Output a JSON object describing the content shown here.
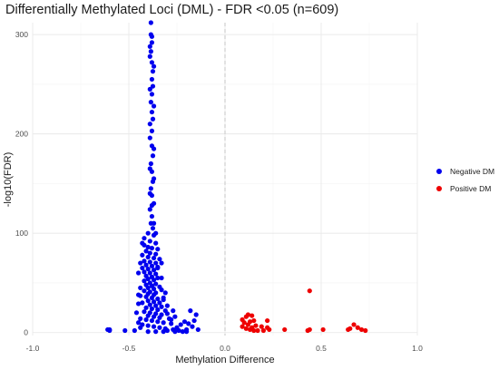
{
  "chart_data": {
    "type": "scatter",
    "title": "Differentially Methylated Loci (DML) - FDR <0.05 (n=609)",
    "xlabel": "Methylation Difference",
    "ylabel": "-log10(FDR)",
    "xlim": [
      -1.0,
      1.0
    ],
    "ylim": [
      -3,
      312
    ],
    "x_ticks": [
      -1.0,
      -0.5,
      0.0,
      0.5,
      1.0
    ],
    "x_tick_labels": [
      "-1.0",
      "-0.5",
      "0.0",
      "0.5",
      "1.0"
    ],
    "y_ticks": [
      0,
      100,
      200,
      300
    ],
    "y_tick_labels": [
      "0",
      "100",
      "200",
      "300"
    ],
    "grid": true,
    "reference_line": {
      "x": 0,
      "style": "dashed",
      "color": "#cfcfcf"
    },
    "legend_position": "right",
    "series": [
      {
        "name": "Negative DM",
        "color": "#0000ee",
        "points": [
          [
            -0.385,
            312
          ],
          [
            -0.385,
            300
          ],
          [
            -0.38,
            298
          ],
          [
            -0.39,
            288
          ],
          [
            -0.385,
            283
          ],
          [
            -0.38,
            272
          ],
          [
            -0.375,
            263
          ],
          [
            -0.38,
            255
          ],
          [
            -0.375,
            248
          ],
          [
            -0.38,
            240
          ],
          [
            -0.385,
            232
          ],
          [
            -0.38,
            222
          ],
          [
            -0.375,
            215
          ],
          [
            -0.38,
            203
          ],
          [
            -0.39,
            196
          ],
          [
            -0.38,
            188
          ],
          [
            -0.375,
            178
          ],
          [
            -0.385,
            170
          ],
          [
            -0.38,
            162
          ],
          [
            -0.375,
            152
          ],
          [
            -0.385,
            145
          ],
          [
            -0.38,
            138
          ],
          [
            -0.37,
            130
          ],
          [
            -0.39,
            124
          ],
          [
            -0.38,
            117
          ],
          [
            -0.385,
            110
          ],
          [
            -0.375,
            105
          ],
          [
            -0.4,
            100
          ],
          [
            -0.37,
            98
          ],
          [
            -0.42,
            95
          ],
          [
            -0.39,
            92
          ],
          [
            -0.36,
            90
          ],
          [
            -0.42,
            88
          ],
          [
            -0.4,
            86
          ],
          [
            -0.38,
            85
          ],
          [
            -0.35,
            84
          ],
          [
            -0.41,
            82
          ],
          [
            -0.39,
            80
          ],
          [
            -0.36,
            79
          ],
          [
            -0.43,
            78
          ],
          [
            -0.4,
            76
          ],
          [
            -0.37,
            75
          ],
          [
            -0.34,
            74
          ],
          [
            -0.42,
            72
          ],
          [
            -0.39,
            71
          ],
          [
            -0.36,
            70
          ],
          [
            -0.41,
            68
          ],
          [
            -0.38,
            67
          ],
          [
            -0.35,
            66
          ],
          [
            -0.43,
            65
          ],
          [
            -0.4,
            64
          ],
          [
            -0.37,
            63
          ],
          [
            -0.42,
            61
          ],
          [
            -0.39,
            60
          ],
          [
            -0.36,
            59
          ],
          [
            -0.41,
            57
          ],
          [
            -0.38,
            56
          ],
          [
            -0.35,
            55
          ],
          [
            -0.4,
            54
          ],
          [
            -0.37,
            53
          ],
          [
            -0.42,
            52
          ],
          [
            -0.39,
            50
          ],
          [
            -0.36,
            49
          ],
          [
            -0.41,
            48
          ],
          [
            -0.38,
            47
          ],
          [
            -0.34,
            46
          ],
          [
            -0.4,
            45
          ],
          [
            -0.37,
            44
          ],
          [
            -0.33,
            43
          ],
          [
            -0.42,
            42
          ],
          [
            -0.39,
            41
          ],
          [
            -0.36,
            40
          ],
          [
            -0.4,
            39
          ],
          [
            -0.37,
            38
          ],
          [
            -0.44,
            37
          ],
          [
            -0.41,
            36
          ],
          [
            -0.38,
            35
          ],
          [
            -0.35,
            34
          ],
          [
            -0.32,
            33
          ],
          [
            -0.4,
            32
          ],
          [
            -0.37,
            31
          ],
          [
            -0.34,
            30
          ],
          [
            -0.45,
            29
          ],
          [
            -0.39,
            28
          ],
          [
            -0.36,
            27
          ],
          [
            -0.33,
            26
          ],
          [
            -0.41,
            25
          ],
          [
            -0.38,
            24
          ],
          [
            -0.35,
            23
          ],
          [
            -0.31,
            22
          ],
          [
            -0.42,
            21
          ],
          [
            -0.39,
            20
          ],
          [
            -0.36,
            19
          ],
          [
            -0.33,
            18
          ],
          [
            -0.4,
            17
          ],
          [
            -0.37,
            16
          ],
          [
            -0.34,
            15
          ],
          [
            -0.29,
            14
          ],
          [
            -0.41,
            13
          ],
          [
            -0.38,
            12
          ],
          [
            -0.35,
            11
          ],
          [
            -0.32,
            10
          ],
          [
            -0.28,
            9
          ],
          [
            -0.43,
            8
          ],
          [
            -0.4,
            7
          ],
          [
            -0.37,
            6
          ],
          [
            -0.34,
            5
          ],
          [
            -0.31,
            4
          ],
          [
            -0.27,
            3
          ],
          [
            -0.24,
            2
          ],
          [
            -0.4,
            1
          ],
          [
            -0.36,
            1
          ],
          [
            -0.32,
            1
          ],
          [
            -0.3,
            2
          ],
          [
            -0.26,
            1
          ],
          [
            -0.22,
            1
          ],
          [
            -0.2,
            3
          ],
          [
            -0.25,
            5
          ],
          [
            -0.23,
            8
          ],
          [
            -0.21,
            11
          ],
          [
            -0.28,
            13
          ],
          [
            -0.26,
            16
          ],
          [
            -0.3,
            19
          ],
          [
            -0.27,
            22
          ],
          [
            -0.3,
            27
          ],
          [
            -0.32,
            35
          ],
          [
            -0.31,
            40
          ],
          [
            -0.33,
            55
          ],
          [
            -0.43,
            90
          ],
          [
            -0.44,
            70
          ],
          [
            -0.45,
            60
          ],
          [
            -0.44,
            45
          ],
          [
            -0.45,
            38
          ],
          [
            -0.43,
            30
          ],
          [
            -0.46,
            20
          ],
          [
            -0.44,
            14
          ],
          [
            -0.45,
            10
          ],
          [
            -0.44,
            5
          ],
          [
            -0.47,
            2
          ],
          [
            -0.52,
            2
          ],
          [
            -0.6,
            3
          ],
          [
            -0.6,
            2
          ],
          [
            -0.61,
            3
          ],
          [
            -0.18,
            22
          ],
          [
            -0.15,
            18
          ],
          [
            -0.16,
            12
          ],
          [
            -0.19,
            9
          ],
          [
            -0.17,
            6
          ],
          [
            -0.14,
            3
          ],
          [
            -0.2,
            1
          ],
          [
            -0.35,
            65
          ],
          [
            -0.33,
            70
          ],
          [
            -0.36,
            100
          ],
          [
            -0.37,
            110
          ],
          [
            -0.38,
            128
          ],
          [
            -0.39,
            140
          ],
          [
            -0.37,
            155
          ],
          [
            -0.39,
            165
          ],
          [
            -0.37,
            185
          ],
          [
            -0.39,
            210
          ],
          [
            -0.37,
            228
          ],
          [
            -0.39,
            245
          ],
          [
            -0.37,
            268
          ],
          [
            -0.39,
            278
          ],
          [
            -0.38,
            292
          ]
        ]
      },
      {
        "name": "Positive DM",
        "color": "#ee0000",
        "points": [
          [
            0.44,
            42
          ],
          [
            0.09,
            13
          ],
          [
            0.11,
            16
          ],
          [
            0.12,
            18
          ],
          [
            0.14,
            17
          ],
          [
            0.1,
            10
          ],
          [
            0.13,
            11
          ],
          [
            0.15,
            12
          ],
          [
            0.12,
            8
          ],
          [
            0.16,
            7
          ],
          [
            0.14,
            5
          ],
          [
            0.19,
            6
          ],
          [
            0.09,
            6
          ],
          [
            0.11,
            4
          ],
          [
            0.13,
            3
          ],
          [
            0.17,
            2
          ],
          [
            0.22,
            12
          ],
          [
            0.22,
            5
          ],
          [
            0.23,
            3
          ],
          [
            0.2,
            2
          ],
          [
            0.15,
            2
          ],
          [
            0.31,
            3
          ],
          [
            0.43,
            2
          ],
          [
            0.44,
            3
          ],
          [
            0.51,
            3
          ],
          [
            0.65,
            4
          ],
          [
            0.67,
            8
          ],
          [
            0.69,
            5
          ],
          [
            0.71,
            3
          ],
          [
            0.73,
            2
          ],
          [
            0.64,
            3
          ]
        ]
      }
    ]
  }
}
